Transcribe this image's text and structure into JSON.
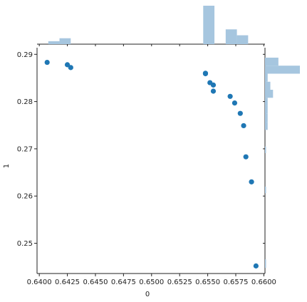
{
  "chart_data": {
    "type": "scatter",
    "subtype": "jointplot",
    "xlabel": "0",
    "ylabel": "1",
    "xlim": [
      0.6398,
      0.6601
    ],
    "ylim": [
      0.2436,
      0.2914
    ],
    "xticks": [
      "0.6400",
      "0.6425",
      "0.6450",
      "0.6475",
      "0.6500",
      "0.6525",
      "0.6550",
      "0.6575",
      "0.6600"
    ],
    "yticks": [
      "0.25",
      "0.26",
      "0.27",
      "0.28",
      "0.29"
    ],
    "point_color": "#1f77b4",
    "hist_color": "#a6c6df",
    "points": [
      {
        "x": 0.6407,
        "y": 0.2883
      },
      {
        "x": 0.6425,
        "y": 0.2878
      },
      {
        "x": 0.6428,
        "y": 0.2872
      },
      {
        "x": 0.6548,
        "y": 0.2859
      },
      {
        "x": 0.6548,
        "y": 0.286
      },
      {
        "x": 0.6552,
        "y": 0.284
      },
      {
        "x": 0.6555,
        "y": 0.2835
      },
      {
        "x": 0.6555,
        "y": 0.2822
      },
      {
        "x": 0.657,
        "y": 0.2811
      },
      {
        "x": 0.6574,
        "y": 0.2797
      },
      {
        "x": 0.6579,
        "y": 0.2775
      },
      {
        "x": 0.6582,
        "y": 0.2749
      },
      {
        "x": 0.6584,
        "y": 0.2683
      },
      {
        "x": 0.6589,
        "y": 0.263
      },
      {
        "x": 0.6593,
        "y": 0.2452
      }
    ],
    "x_hist": {
      "bins": [
        {
          "x0": 0.6408,
          "x1": 0.6418,
          "count": 1
        },
        {
          "x0": 0.6418,
          "x1": 0.6428,
          "count": 2
        },
        {
          "x0": 0.6546,
          "x1": 0.6556,
          "count": 13
        },
        {
          "x0": 0.6566,
          "x1": 0.6576,
          "count": 5
        },
        {
          "x0": 0.6576,
          "x1": 0.6586,
          "count": 3
        }
      ],
      "max_count": 13
    },
    "y_hist": {
      "bins": [
        {
          "y0": 0.2876,
          "y1": 0.2893,
          "count": 5
        },
        {
          "y0": 0.2859,
          "y1": 0.2876,
          "count": 13
        },
        {
          "y0": 0.2842,
          "y1": 0.2859,
          "count": 1
        },
        {
          "y0": 0.2825,
          "y1": 0.2842,
          "count": 2
        },
        {
          "y0": 0.2808,
          "y1": 0.2825,
          "count": 3
        },
        {
          "y0": 0.2791,
          "y1": 0.2808,
          "count": 1
        },
        {
          "y0": 0.2774,
          "y1": 0.2791,
          "count": 1
        },
        {
          "y0": 0.2757,
          "y1": 0.2774,
          "count": 1
        },
        {
          "y0": 0.274,
          "y1": 0.2757,
          "count": 1
        },
        {
          "y0": 0.2691,
          "y1": 0.2705,
          "count": 0.3
        },
        {
          "y0": 0.2606,
          "y1": 0.262,
          "count": 0.3
        },
        {
          "y0": 0.2448,
          "y1": 0.2466,
          "count": 0.3
        }
      ],
      "max_count": 13
    }
  }
}
